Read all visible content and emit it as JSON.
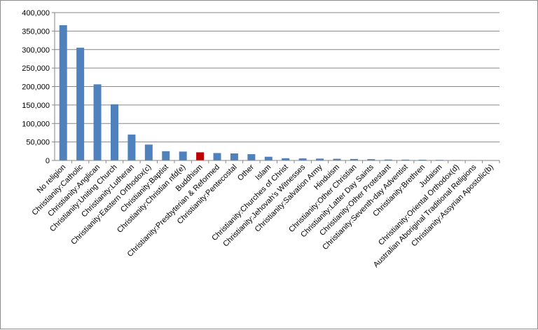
{
  "chart_data": {
    "type": "bar",
    "title": "",
    "xlabel": "",
    "ylabel": "",
    "ylim": [
      0,
      400000
    ],
    "y_ticks": [
      "0",
      "50,000",
      "100,000",
      "150,000",
      "200,000",
      "250,000",
      "300,000",
      "350,000",
      "400,000"
    ],
    "y_tick_values": [
      0,
      50000,
      100000,
      150000,
      200000,
      250000,
      300000,
      350000,
      400000
    ],
    "grid": true,
    "legend": "none",
    "categories": [
      "No religion",
      "Christianity:Catholic",
      "Christianity:Anglican",
      "Christianity:Uniting Church",
      "Christianity:Lutheran",
      "Christianity:Eastern Orthodox(c)",
      "Christianity:Baptist",
      "Christianity:Christian nfd(e)",
      "Buddhism",
      "Christianity:Presbyterian & Reformed",
      "Christianity:Pentecostal",
      "Other",
      "Islam",
      "Christianity:Churches of Christ",
      "Christianity:Jehovah's Witnesses",
      "Christianity:Salvation Army",
      "Hinduism",
      "Christianity:Other Christian",
      "Christianity:Latter Day Saints",
      "Christianity:Other Protestant",
      "Christianity:Seventh-day Adventist",
      "Christianity:Brethren",
      "Judaism",
      "Christianity:Oriental Orthodox(d)",
      "Australian Aboriginal Traditional Religions",
      "Christianity:Assyrian Apostolic(b)"
    ],
    "values": [
      366000,
      305000,
      206000,
      152000,
      70000,
      43000,
      25000,
      24000,
      22000,
      20000,
      19000,
      17000,
      10000,
      6000,
      5500,
      5000,
      4500,
      4000,
      3500,
      2500,
      2200,
      2000,
      1500,
      1200,
      1000,
      800
    ],
    "bar_color": "#4f81bd",
    "highlight_index": 8,
    "highlight_color": "#c00000",
    "axis_color": "#868686",
    "grid_color": "#868686"
  }
}
